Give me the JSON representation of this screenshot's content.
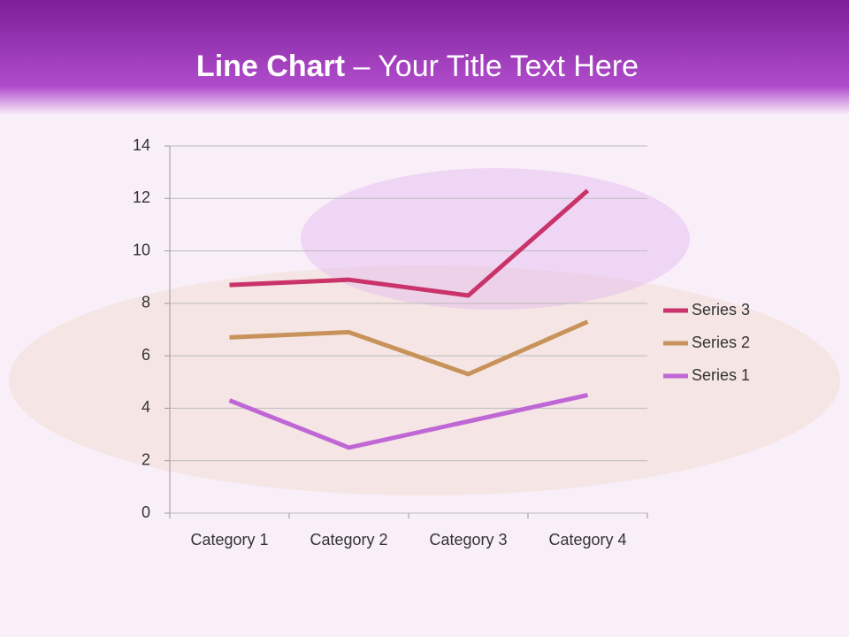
{
  "header": {
    "title_bold": "Line Chart",
    "title_rest": "– Your Title Text Here"
  },
  "chart_data": {
    "type": "line",
    "categories": [
      "Category 1",
      "Category 2",
      "Category 3",
      "Category 4"
    ],
    "series": [
      {
        "name": "Series 1",
        "color": "#c067d6",
        "values": [
          4.3,
          2.5,
          3.5,
          4.5
        ]
      },
      {
        "name": "Series 2",
        "color": "#c8935a",
        "values": [
          6.7,
          6.9,
          5.3,
          7.3
        ]
      },
      {
        "name": "Series 3",
        "color": "#c9336a",
        "values": [
          8.7,
          8.9,
          8.3,
          12.3
        ]
      }
    ],
    "ylim": [
      0,
      14
    ],
    "yticks": [
      0,
      2,
      4,
      6,
      8,
      10,
      12,
      14
    ],
    "grid": true,
    "legend": "right"
  }
}
